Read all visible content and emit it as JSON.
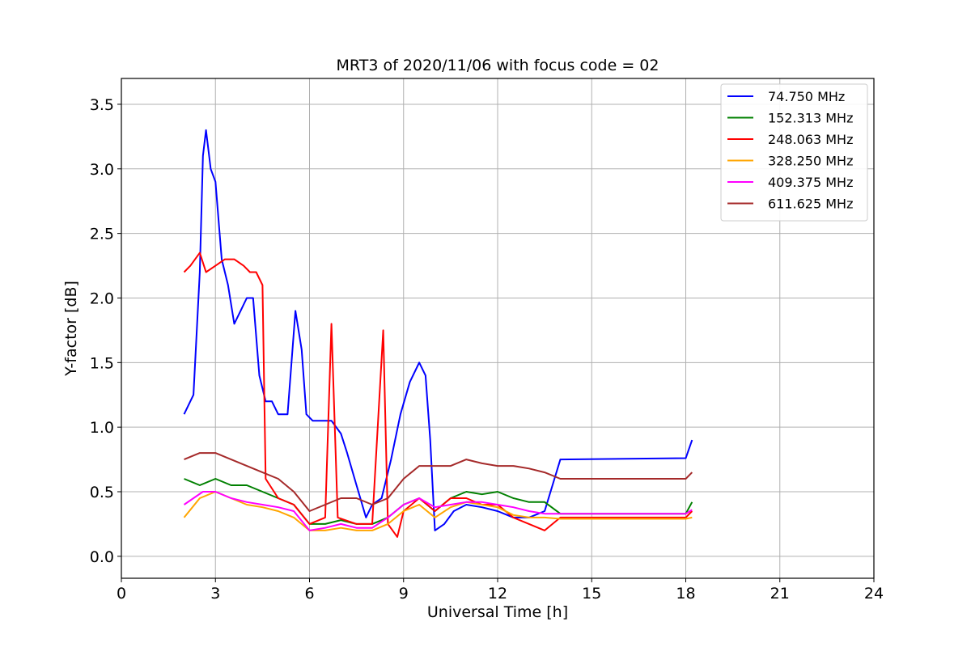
{
  "chart_data": {
    "type": "line",
    "title": "MRT3 of 2020/11/06 with focus code = 02",
    "xlabel": "Universal Time [h]",
    "ylabel": "Y-factor [dB]",
    "xlim": [
      0,
      24
    ],
    "ylim": [
      -0.17,
      3.7
    ],
    "x_ticks": [
      0,
      3,
      6,
      9,
      12,
      15,
      18,
      21,
      24
    ],
    "y_ticks": [
      0.0,
      0.5,
      1.0,
      1.5,
      2.0,
      2.5,
      3.0,
      3.5
    ],
    "x_tick_labels": [
      "0",
      "3",
      "6",
      "9",
      "12",
      "15",
      "18",
      "21",
      "24"
    ],
    "y_tick_labels": [
      "0.0",
      "0.5",
      "1.0",
      "1.5",
      "2.0",
      "2.5",
      "3.0",
      "3.5"
    ],
    "grid": true,
    "legend_position": "top-right",
    "series": [
      {
        "name": " 74.750 MHz",
        "color": "#0000ff",
        "x": [
          2.0,
          2.3,
          2.5,
          2.6,
          2.7,
          2.85,
          3.0,
          3.2,
          3.4,
          3.6,
          3.8,
          4.0,
          4.2,
          4.4,
          4.6,
          4.8,
          5.0,
          5.3,
          5.55,
          5.75,
          5.9,
          6.1,
          6.4,
          6.7,
          7.0,
          7.2,
          7.5,
          7.8,
          8.0,
          8.3,
          8.6,
          8.9,
          9.2,
          9.5,
          9.7,
          9.85,
          10.0,
          10.3,
          10.6,
          11.0,
          11.5,
          12.0,
          12.5,
          13.0,
          13.5,
          14.0,
          18.0,
          18.2
        ],
        "y": [
          1.1,
          1.25,
          2.2,
          3.1,
          3.3,
          3.0,
          2.9,
          2.3,
          2.1,
          1.8,
          1.9,
          2.0,
          2.0,
          1.4,
          1.2,
          1.2,
          1.1,
          1.1,
          1.9,
          1.6,
          1.1,
          1.05,
          1.05,
          1.05,
          0.95,
          0.8,
          0.55,
          0.3,
          0.4,
          0.45,
          0.75,
          1.1,
          1.35,
          1.5,
          1.4,
          0.9,
          0.2,
          0.25,
          0.35,
          0.4,
          0.38,
          0.35,
          0.3,
          0.3,
          0.35,
          0.75,
          0.76,
          0.9
        ]
      },
      {
        "name": "152.313 MHz",
        "color": "#008000",
        "x": [
          2.0,
          2.5,
          3.0,
          3.5,
          4.0,
          4.5,
          5.0,
          5.5,
          6.0,
          6.5,
          7.0,
          7.5,
          8.0,
          8.5,
          9.0,
          9.5,
          10.0,
          10.5,
          11.0,
          11.5,
          12.0,
          12.5,
          13.0,
          13.5,
          14.0,
          18.0,
          18.2
        ],
        "y": [
          0.6,
          0.55,
          0.6,
          0.55,
          0.55,
          0.5,
          0.45,
          0.4,
          0.25,
          0.25,
          0.28,
          0.25,
          0.25,
          0.3,
          0.4,
          0.45,
          0.35,
          0.45,
          0.5,
          0.48,
          0.5,
          0.45,
          0.42,
          0.42,
          0.33,
          0.33,
          0.42
        ]
      },
      {
        "name": "248.063 MHz",
        "color": "#ff0000",
        "x": [
          2.0,
          2.2,
          2.5,
          2.7,
          3.0,
          3.3,
          3.6,
          3.9,
          4.1,
          4.3,
          4.5,
          4.6,
          5.0,
          5.5,
          6.0,
          6.5,
          6.7,
          6.9,
          7.5,
          8.0,
          8.35,
          8.5,
          8.8,
          9.0,
          9.5,
          10.0,
          10.5,
          11.0,
          11.5,
          12.0,
          12.5,
          13.0,
          13.5,
          14.0,
          18.0,
          18.2
        ],
        "y": [
          2.2,
          2.25,
          2.35,
          2.2,
          2.25,
          2.3,
          2.3,
          2.25,
          2.2,
          2.2,
          2.1,
          0.6,
          0.45,
          0.4,
          0.25,
          0.3,
          1.8,
          0.3,
          0.25,
          0.25,
          1.75,
          0.25,
          0.15,
          0.35,
          0.45,
          0.35,
          0.45,
          0.45,
          0.4,
          0.4,
          0.3,
          0.25,
          0.2,
          0.3,
          0.3,
          0.35
        ]
      },
      {
        "name": "328.250 MHz",
        "color": "#ffa500",
        "x": [
          2.0,
          2.5,
          3.0,
          3.5,
          4.0,
          4.5,
          5.0,
          5.5,
          6.0,
          6.5,
          7.0,
          7.5,
          8.0,
          8.5,
          9.0,
          9.5,
          10.0,
          10.5,
          11.0,
          11.5,
          12.0,
          12.5,
          13.0,
          13.5,
          14.0,
          18.0,
          18.2
        ],
        "y": [
          0.3,
          0.45,
          0.5,
          0.45,
          0.4,
          0.38,
          0.35,
          0.3,
          0.2,
          0.2,
          0.22,
          0.2,
          0.2,
          0.25,
          0.35,
          0.4,
          0.3,
          0.38,
          0.42,
          0.4,
          0.38,
          0.32,
          0.3,
          0.3,
          0.29,
          0.29,
          0.3
        ]
      },
      {
        "name": "409.375 MHz",
        "color": "#ff00ff",
        "x": [
          2.0,
          2.3,
          2.6,
          3.0,
          3.5,
          4.0,
          4.5,
          5.0,
          5.5,
          6.0,
          6.5,
          7.0,
          7.5,
          8.0,
          8.5,
          9.0,
          9.5,
          10.0,
          10.5,
          11.0,
          11.5,
          12.0,
          12.5,
          13.0,
          13.5,
          14.0,
          18.0,
          18.2
        ],
        "y": [
          0.4,
          0.45,
          0.5,
          0.5,
          0.45,
          0.42,
          0.4,
          0.38,
          0.35,
          0.2,
          0.22,
          0.25,
          0.22,
          0.22,
          0.3,
          0.4,
          0.45,
          0.38,
          0.4,
          0.42,
          0.42,
          0.4,
          0.38,
          0.35,
          0.33,
          0.33,
          0.33,
          0.36
        ]
      },
      {
        "name": "611.625 MHz",
        "color": "#a52a2a",
        "x": [
          2.0,
          2.5,
          3.0,
          3.5,
          4.0,
          4.5,
          5.0,
          5.5,
          6.0,
          6.5,
          7.0,
          7.5,
          8.0,
          8.5,
          9.0,
          9.5,
          10.0,
          10.5,
          11.0,
          11.5,
          12.0,
          12.5,
          13.0,
          13.5,
          14.0,
          18.0,
          18.2
        ],
        "y": [
          0.75,
          0.8,
          0.8,
          0.75,
          0.7,
          0.65,
          0.6,
          0.5,
          0.35,
          0.4,
          0.45,
          0.45,
          0.4,
          0.45,
          0.6,
          0.7,
          0.7,
          0.7,
          0.75,
          0.72,
          0.7,
          0.7,
          0.68,
          0.65,
          0.6,
          0.6,
          0.65
        ]
      }
    ]
  }
}
